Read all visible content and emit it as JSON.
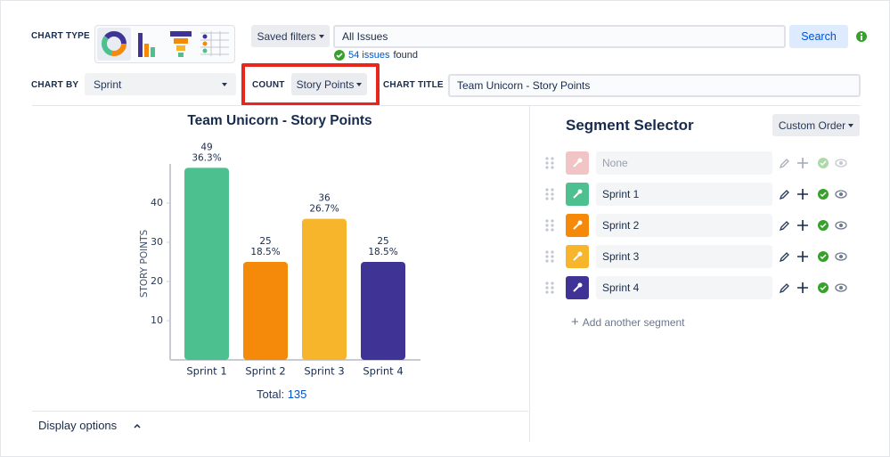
{
  "toolbar": {
    "chart_type_label": "CHART TYPE",
    "saved_filters": "Saved filters",
    "filter_value": "All Issues",
    "search": "Search",
    "issues_link": "54 issues",
    "issues_found": "found",
    "chart_by_label": "CHART BY",
    "chart_by": "Sprint",
    "count_label": "COUNT",
    "count": "Story Points",
    "chart_title_label": "CHART TITLE",
    "chart_title": "Team Unicorn - Story Points"
  },
  "chart_data": {
    "type": "bar",
    "title": "Team Unicorn - Story Points",
    "y_label": "STORY POINTS",
    "categories": [
      "Sprint 1",
      "Sprint 2",
      "Sprint 3",
      "Sprint 4"
    ],
    "values": [
      49,
      25,
      36,
      25
    ],
    "percentages": [
      36.3,
      18.5,
      26.7,
      18.5
    ],
    "percentage_labels": [
      "36.3%",
      "18.5%",
      "26.7%",
      "18.5%"
    ],
    "colors": [
      "#4cc08f",
      "#f4890a",
      "#f6b52a",
      "#3f3396"
    ],
    "ylim": [
      0,
      50
    ],
    "yticks": [
      10,
      20,
      30,
      40
    ],
    "total_label": "Total:",
    "total": 135
  },
  "display_options": "Display options",
  "segment_selector": {
    "title": "Segment Selector",
    "order": "Custom Order",
    "add": "Add another segment",
    "segments": [
      {
        "name": "None",
        "color": "#e8a0a0"
      },
      {
        "name": "Sprint 1",
        "color": "#4cc08f"
      },
      {
        "name": "Sprint 2",
        "color": "#f4890a"
      },
      {
        "name": "Sprint 3",
        "color": "#f6b52a"
      },
      {
        "name": "Sprint 4",
        "color": "#3f3396"
      }
    ]
  }
}
